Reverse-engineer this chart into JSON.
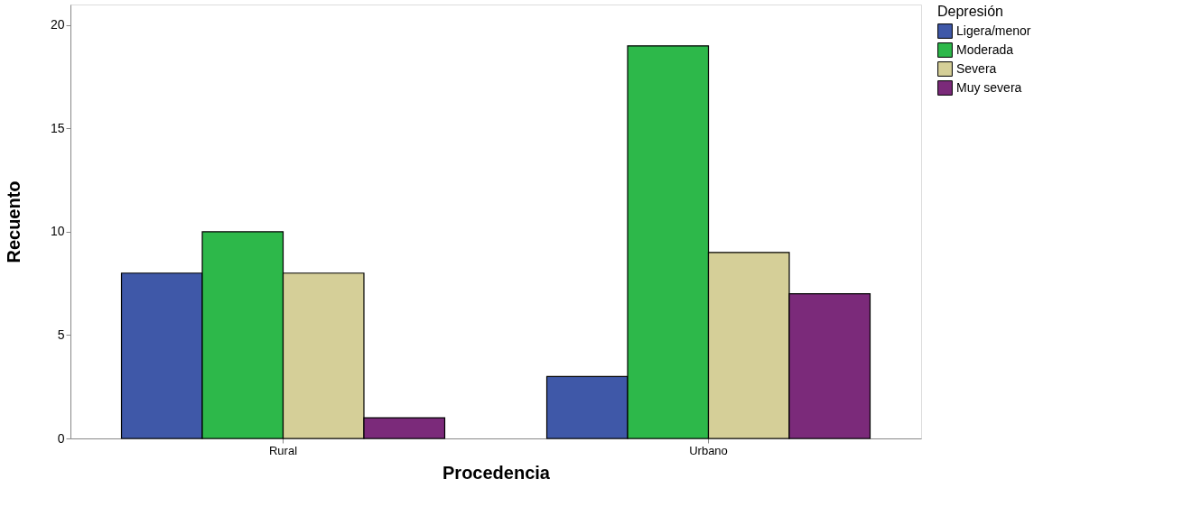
{
  "chart_data": {
    "type": "bar",
    "xlabel": "Procedencia",
    "ylabel": "Recuento",
    "legend_title": "Depresión",
    "legend": "right",
    "categories": [
      "Rural",
      "Urbano"
    ],
    "series": [
      {
        "name": "Ligera/menor",
        "color": "#3f58a8",
        "values": [
          8,
          3
        ]
      },
      {
        "name": "Moderada",
        "color": "#2db84a",
        "values": [
          10,
          19
        ]
      },
      {
        "name": "Severa",
        "color": "#d5cf98",
        "values": [
          8,
          9
        ]
      },
      {
        "name": "Muy severa",
        "color": "#7b2a7a",
        "values": [
          1,
          7
        ]
      }
    ],
    "ylim": [
      0,
      21
    ],
    "yticks": [
      0,
      5,
      10,
      15,
      20
    ],
    "grid": false
  }
}
